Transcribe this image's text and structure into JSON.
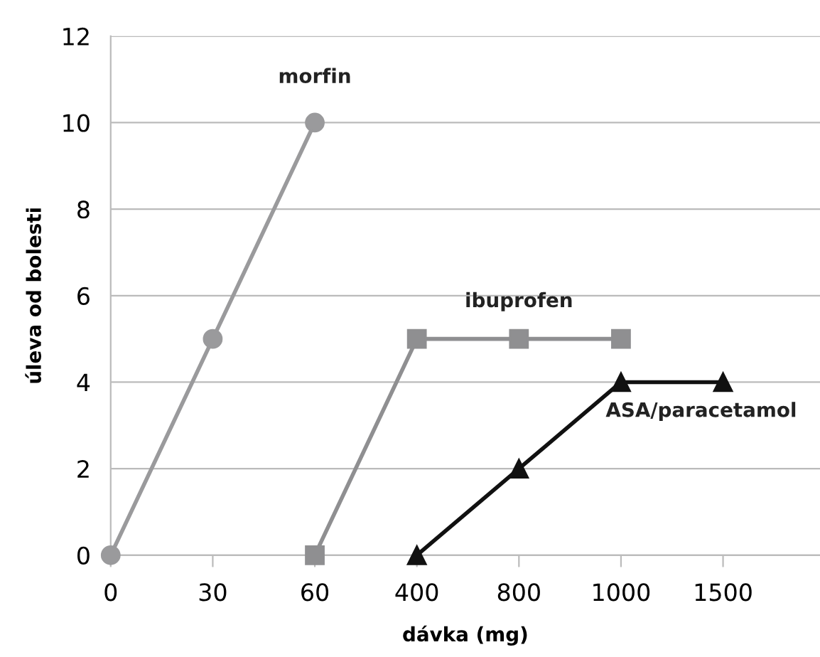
{
  "chart_data": {
    "type": "line",
    "xlabel": "dávka (mg)",
    "ylabel": "úleva od bolesti",
    "categories": [
      "0",
      "30",
      "60",
      "400",
      "800",
      "1000",
      "1500"
    ],
    "series": [
      {
        "name": "morfin",
        "color": "#9a9a9c",
        "marker": "circle",
        "values": [
          0,
          5,
          10,
          null,
          null,
          null,
          null
        ]
      },
      {
        "name": "ibuprofen",
        "color": "#8f8f91",
        "marker": "square",
        "values": [
          null,
          null,
          0,
          5,
          5,
          5,
          null
        ]
      },
      {
        "name": "ASA/paracetamol",
        "color": "#111111",
        "marker": "triangle",
        "values": [
          null,
          null,
          null,
          0,
          2,
          4,
          4
        ]
      }
    ],
    "ylim": [
      0,
      12
    ],
    "yticks": [
      0,
      2,
      4,
      6,
      8,
      10,
      12
    ],
    "grid": "y",
    "legend": false,
    "line_style": "solid"
  }
}
